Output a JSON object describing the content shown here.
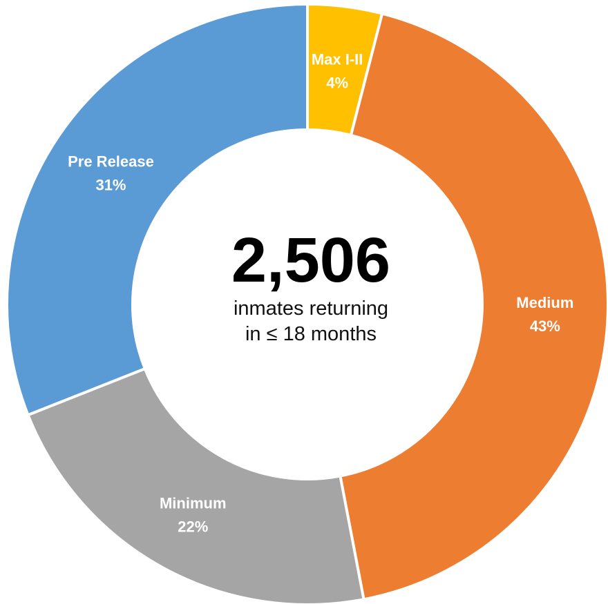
{
  "chart_data": {
    "type": "pie",
    "variant": "donut",
    "categories": [
      "Max I-II",
      "Medium",
      "Minimum",
      "Pre Release"
    ],
    "values": [
      4,
      43,
      22,
      31
    ],
    "value_labels": [
      "4%",
      "43%",
      "22%",
      "31%"
    ],
    "colors": [
      "#FFC000",
      "#ED7D31",
      "#A5A5A5",
      "#5B9BD5"
    ],
    "legend": "none"
  },
  "center": {
    "total": "2,506",
    "line1": "inmates returning",
    "line2": "in ≤ 18 months"
  }
}
